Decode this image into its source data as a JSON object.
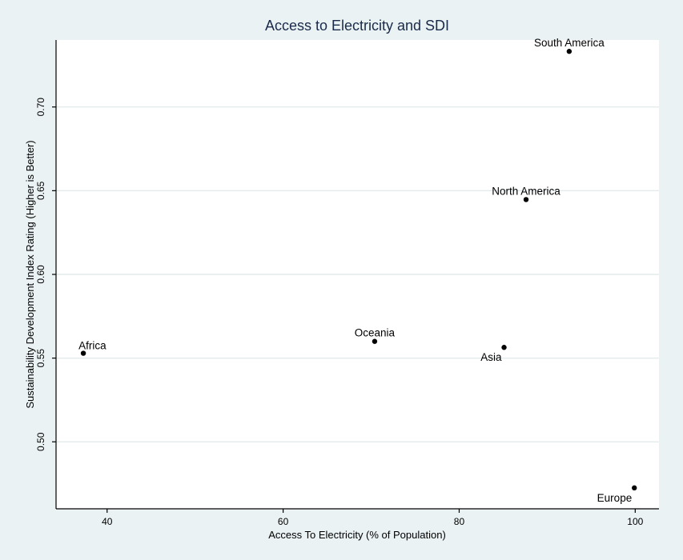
{
  "chart_data": {
    "type": "scatter",
    "title": "Access to Electricity and SDI",
    "xlabel": "Access To Electricity (% of Population)",
    "ylabel": "Sustainability Development Index Rating (Higher is Better)",
    "xlim": [
      34.2,
      102.7
    ],
    "ylim": [
      0.46,
      0.74
    ],
    "xticks": [
      40,
      60,
      80,
      100
    ],
    "xtick_labels": [
      "40",
      "60",
      "80",
      "100"
    ],
    "yticks": [
      0.5,
      0.55,
      0.6,
      0.65,
      0.7
    ],
    "ytick_labels": [
      "0.50",
      "0.55",
      "0.60",
      "0.65",
      "0.70"
    ],
    "grid": "horizontal",
    "points": [
      {
        "label": "South America",
        "x": 92.5,
        "y": 0.7332,
        "label_pos": "above-center"
      },
      {
        "label": "North America",
        "x": 87.6,
        "y": 0.6447,
        "label_pos": "above-center"
      },
      {
        "label": "Oceania",
        "x": 70.4,
        "y": 0.56,
        "label_pos": "above-center"
      },
      {
        "label": "Asia",
        "x": 85.1,
        "y": 0.5564,
        "label_pos": "below-left"
      },
      {
        "label": "Africa",
        "x": 37.3,
        "y": 0.5529,
        "label_pos": "above-right"
      },
      {
        "label": "Europe",
        "x": 99.9,
        "y": 0.4725,
        "label_pos": "below-left"
      }
    ]
  }
}
